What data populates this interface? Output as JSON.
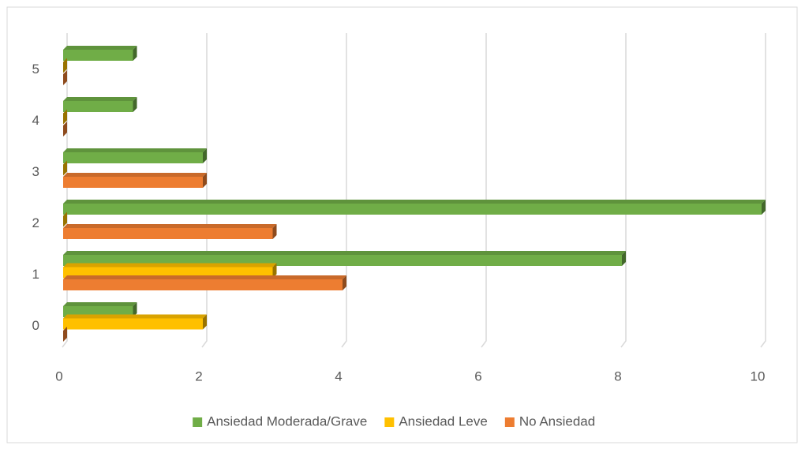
{
  "chart_data": {
    "type": "hbar",
    "categories": [
      "0",
      "1",
      "2",
      "3",
      "4",
      "5"
    ],
    "series": [
      {
        "name": "Ansiedad Moderada/Grave",
        "color": "#70ad47",
        "values": [
          1,
          8,
          10,
          2,
          1,
          1
        ]
      },
      {
        "name": "Ansiedad Leve",
        "color": "#ffc000",
        "values": [
          2,
          3,
          0,
          0,
          0,
          0
        ]
      },
      {
        "name": "No Ansiedad",
        "color": "#ed7d31",
        "values": [
          0,
          4,
          3,
          2,
          0,
          0
        ]
      }
    ],
    "xlim": [
      0,
      10
    ],
    "xticks": [
      0,
      2,
      4,
      6,
      8,
      10
    ],
    "grid": true,
    "legend": "bottom"
  }
}
